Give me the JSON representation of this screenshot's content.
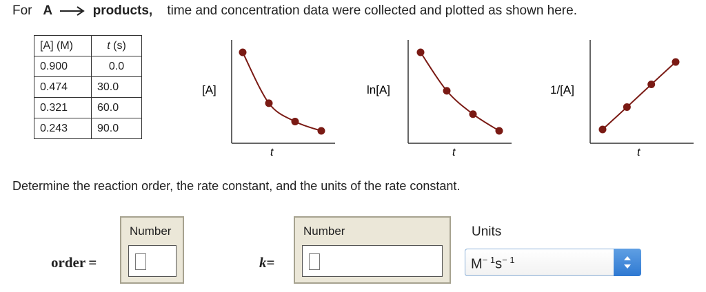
{
  "prompt": {
    "for": "For",
    "reactant": "A",
    "product": "products,",
    "rest": "time and concentration data were collected and plotted as shown here."
  },
  "table": {
    "headers": [
      "[A] (M)",
      "t (s)"
    ],
    "rows": [
      [
        "0.900",
        "0.0"
      ],
      [
        "0.474",
        "30.0"
      ],
      [
        "0.321",
        "60.0"
      ],
      [
        "0.243",
        "90.0"
      ]
    ]
  },
  "chart_data": [
    {
      "type": "line",
      "ylabel": "[A]",
      "xlabel": "t",
      "x": [
        0.0,
        30.0,
        60.0,
        90.0
      ],
      "y": [
        0.9,
        0.474,
        0.321,
        0.243
      ],
      "color": "#7a1a14",
      "grid": false
    },
    {
      "type": "line",
      "ylabel": "ln[A]",
      "xlabel": "t",
      "x": [
        0.0,
        30.0,
        60.0,
        90.0
      ],
      "y": [
        -0.105,
        -0.747,
        -1.136,
        -1.415
      ],
      "color": "#7a1a14",
      "grid": false
    },
    {
      "type": "line",
      "ylabel": "1/[A]",
      "xlabel": "t",
      "x": [
        0.0,
        30.0,
        60.0,
        90.0
      ],
      "y": [
        1.11,
        2.11,
        3.12,
        4.12
      ],
      "color": "#7a1a14",
      "grid": false
    }
  ],
  "question": "Determine the reaction order, the rate constant, and the units of the rate constant.",
  "order_field": {
    "label": "order =",
    "box_label": "Number",
    "value": ""
  },
  "k_field": {
    "label": "k =",
    "box_label": "Number",
    "value": ""
  },
  "units": {
    "label": "Units",
    "selected_M": "M",
    "selected_M_exp": "− 1",
    "selected_s": "s",
    "selected_s_exp": "− 1"
  },
  "colors": {
    "curve": "#7a1a14",
    "numbox_bg": "#ebe7d8",
    "select_button": "#3a84d8"
  }
}
